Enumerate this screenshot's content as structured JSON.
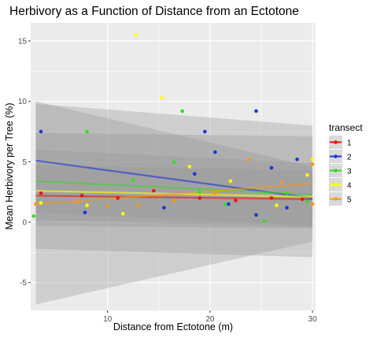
{
  "chart_data": {
    "type": "scatter",
    "title": "Herbivory as a Function of Distance from an Ectotone",
    "xlabel": "Distance from Ectotone (m)",
    "ylabel": "Mean Herbivory per Tree (%)",
    "xlim": [
      2.5,
      30.3
    ],
    "ylim": [
      -7.3,
      16.5
    ],
    "x_ticks": [
      10,
      20,
      30
    ],
    "x_tick_labels": [
      "10",
      "20",
      "30"
    ],
    "y_ticks": [
      -5,
      0,
      5,
      10,
      15
    ],
    "y_tick_labels": [
      "-5",
      "0",
      "5",
      "10",
      "15"
    ],
    "grid": true,
    "background": "#ebebeb",
    "legend": {
      "title": "transect",
      "placement": "right",
      "entries": [
        "1",
        "2",
        "3",
        "4",
        "5"
      ]
    },
    "series": [
      {
        "name": "1",
        "color": "#e8160c",
        "points": [
          [
            3.5,
            2.4
          ],
          [
            7.5,
            2.2
          ],
          [
            11.0,
            2.0
          ],
          [
            14.5,
            2.6
          ],
          [
            19.0,
            2.0
          ],
          [
            22.5,
            1.8
          ],
          [
            26.0,
            2.0
          ],
          [
            29.0,
            1.9
          ]
        ],
        "fit": {
          "x": [
            3,
            30
          ],
          "y": [
            2.2,
            1.9
          ]
        },
        "band_low": [
          -0.3,
          -0.5
        ],
        "band_high": [
          4.7,
          4.3
        ]
      },
      {
        "name": "2",
        "color": "#1a36d6",
        "points": [
          [
            3.5,
            7.5
          ],
          [
            7.8,
            0.8
          ],
          [
            15.5,
            1.2
          ],
          [
            18.5,
            4.0
          ],
          [
            19.5,
            7.5
          ],
          [
            20.5,
            5.8
          ],
          [
            21.8,
            1.5
          ],
          [
            24.5,
            9.2
          ],
          [
            24.5,
            0.6
          ],
          [
            26.0,
            4.5
          ],
          [
            27.5,
            1.2
          ],
          [
            28.5,
            5.2
          ]
        ],
        "fit": {
          "x": [
            3,
            30
          ],
          "y": [
            5.1,
            2.0
          ]
        },
        "band_low": [
          0.2,
          -0.4
        ],
        "band_high": [
          10.0,
          4.6
        ]
      },
      {
        "name": "3",
        "color": "#3ad82a",
        "points": [
          [
            2.8,
            0.5
          ],
          [
            8.0,
            7.5
          ],
          [
            12.5,
            3.5
          ],
          [
            16.5,
            5.0
          ],
          [
            17.3,
            9.2
          ],
          [
            19.0,
            2.5
          ],
          [
            21.5,
            1.5
          ],
          [
            25.3,
            0.1
          ],
          [
            27.5,
            2.4
          ],
          [
            29.5,
            1.7
          ]
        ],
        "fit": {
          "x": [
            3,
            30
          ],
          "y": [
            3.4,
            2.3
          ]
        },
        "band_low": [
          0.8,
          -0.3
        ],
        "band_high": [
          6.0,
          4.9
        ]
      },
      {
        "name": "4",
        "color": "#ffff00",
        "points": [
          [
            3.5,
            1.6
          ],
          [
            8.0,
            1.4
          ],
          [
            11.5,
            0.7
          ],
          [
            12.8,
            15.5
          ],
          [
            15.3,
            10.3
          ],
          [
            18.0,
            4.6
          ],
          [
            22.0,
            3.4
          ],
          [
            26.5,
            1.4
          ],
          [
            29.5,
            3.9
          ],
          [
            30.0,
            5.2
          ]
        ],
        "fit": {
          "x": [
            3,
            30
          ],
          "y": [
            2.6,
            2.1
          ]
        },
        "band_low": [
          -2.2,
          -2.9
        ],
        "band_high": [
          7.4,
          7.1
        ]
      },
      {
        "name": "5",
        "color": "#f59a16",
        "points": [
          [
            3.0,
            1.5
          ],
          [
            7.0,
            1.7
          ],
          [
            10.0,
            1.3
          ],
          [
            13.0,
            1.4
          ],
          [
            16.5,
            1.8
          ],
          [
            20.5,
            2.4
          ],
          [
            23.8,
            5.2
          ],
          [
            27.0,
            3.3
          ],
          [
            30.0,
            4.8
          ],
          [
            30.0,
            1.5
          ]
        ],
        "fit": {
          "x": [
            3,
            30
          ],
          "y": [
            1.5,
            3.2
          ]
        },
        "band_low": [
          -6.8,
          -1.6
        ],
        "band_high": [
          9.8,
          8.0
        ]
      }
    ]
  }
}
